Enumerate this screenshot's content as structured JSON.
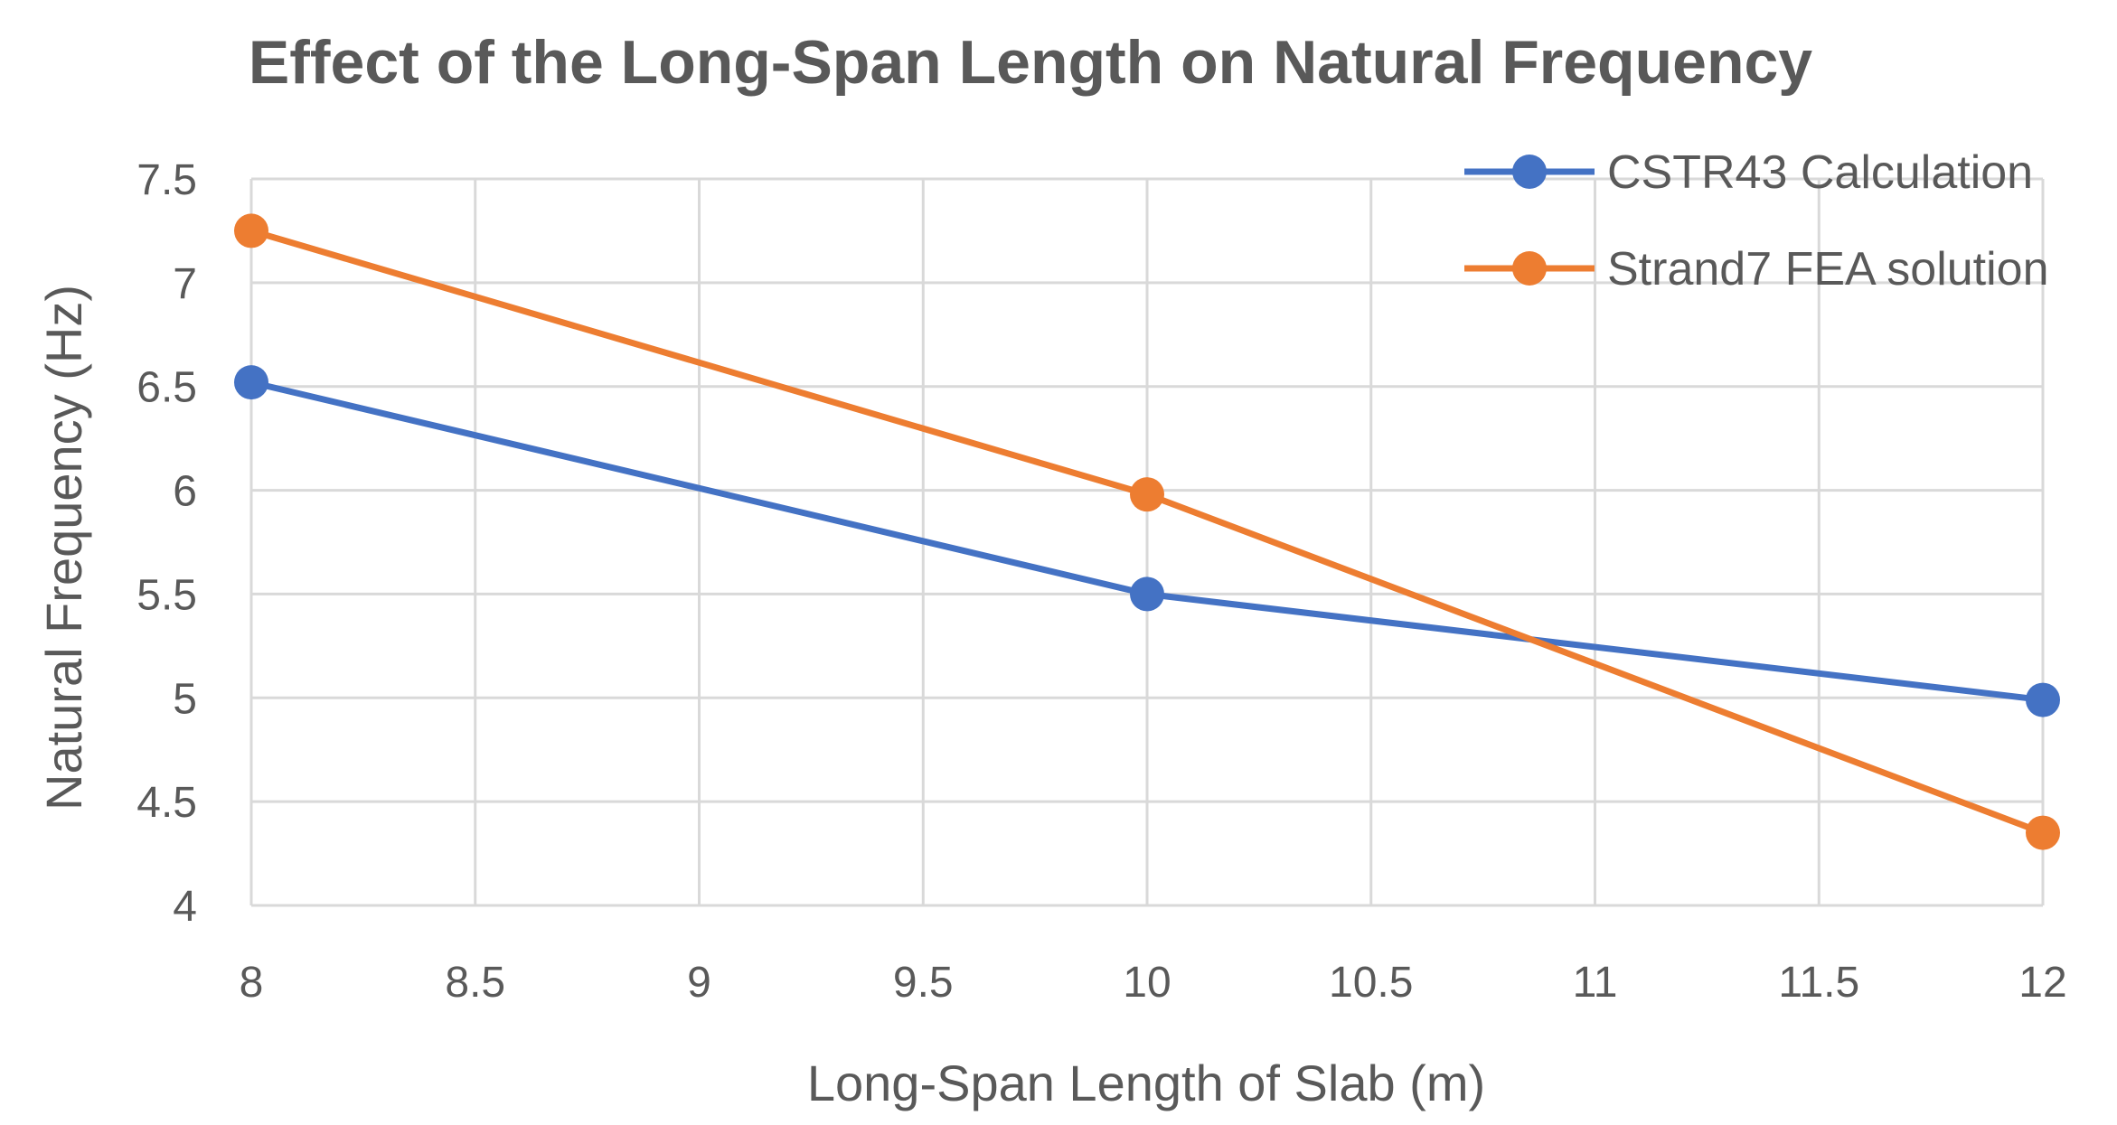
{
  "chart_data": {
    "type": "line",
    "title": "Effect of the Long-Span Length on Natural Frequency",
    "xlabel": "Long-Span Length of Slab (m)",
    "ylabel": "Natural Frequency (Hz)",
    "xlim": [
      8,
      12
    ],
    "ylim": [
      4,
      7.5
    ],
    "x_ticks": [
      8,
      8.5,
      9,
      9.5,
      10,
      10.5,
      11,
      11.5,
      12
    ],
    "x_tick_labels": [
      "8",
      "8.5",
      "9",
      "9.5",
      "10",
      "10.5",
      "11",
      "11.5",
      "12"
    ],
    "y_ticks": [
      4,
      4.5,
      5,
      5.5,
      6,
      6.5,
      7,
      7.5
    ],
    "y_tick_labels": [
      "4",
      "4.5",
      "5",
      "5.5",
      "6",
      "6.5",
      "7",
      "7.5"
    ],
    "grid": true,
    "legend_position": "top-right",
    "series": [
      {
        "name": "CSTR43 Calculation",
        "color": "#4472c4",
        "x": [
          8,
          10,
          12
        ],
        "y": [
          6.52,
          5.5,
          4.99
        ]
      },
      {
        "name": "Strand7 FEA solution",
        "color": "#ed7d31",
        "x": [
          8,
          10,
          12
        ],
        "y": [
          7.25,
          5.98,
          4.35
        ]
      }
    ]
  }
}
